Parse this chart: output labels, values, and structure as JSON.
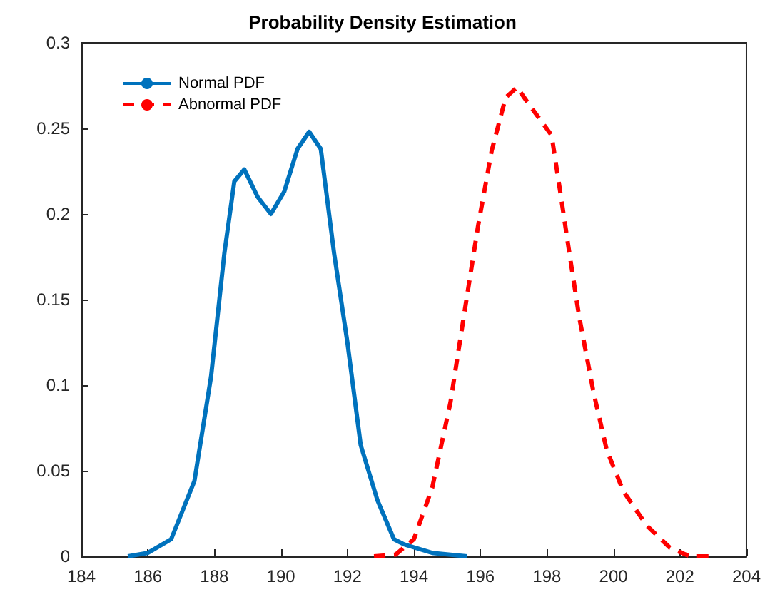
{
  "chart_data": {
    "type": "line",
    "title": "Probability Density Estimation",
    "xlim": [
      184,
      204
    ],
    "xticks": [
      184,
      186,
      188,
      190,
      192,
      194,
      196,
      198,
      200,
      202,
      204
    ],
    "ylim": [
      0,
      0.3
    ],
    "yticks": [
      0,
      0.05,
      0.1,
      0.15,
      0.2,
      0.25,
      0.3
    ],
    "grid": false,
    "legend": "top left",
    "marker": "none",
    "series": [
      {
        "name": "Normal PDF",
        "color": "#0072bd",
        "line_style": "solid",
        "x": [
          185.4,
          186.0,
          186.7,
          187.4,
          187.9,
          188.3,
          188.6,
          188.9,
          189.3,
          189.7,
          190.1,
          190.5,
          190.85,
          191.2,
          191.6,
          192.0,
          192.4,
          192.9,
          193.4,
          193.7,
          194.55,
          195.6
        ],
        "values": [
          0,
          0.002,
          0.01,
          0.044,
          0.105,
          0.177,
          0.219,
          0.226,
          0.21,
          0.2,
          0.213,
          0.238,
          0.248,
          0.238,
          0.177,
          0.125,
          0.065,
          0.033,
          0.01,
          0.007,
          0.002,
          0
        ]
      },
      {
        "name": "Abnormal PDF",
        "color": "#ff0000",
        "line_style": "dashed",
        "x": [
          192.8,
          193.45,
          194.0,
          194.55,
          195.1,
          195.5,
          195.93,
          196.34,
          196.76,
          197.1,
          197.5,
          198.14,
          198.4,
          198.7,
          198.97,
          199.4,
          199.8,
          200.3,
          201.0,
          201.7,
          202.3,
          203.0
        ],
        "values": [
          0,
          0.001,
          0.01,
          0.04,
          0.09,
          0.14,
          0.193,
          0.237,
          0.268,
          0.274,
          0.263,
          0.246,
          0.213,
          0.174,
          0.14,
          0.096,
          0.062,
          0.038,
          0.018,
          0.005,
          0,
          0
        ]
      }
    ]
  }
}
